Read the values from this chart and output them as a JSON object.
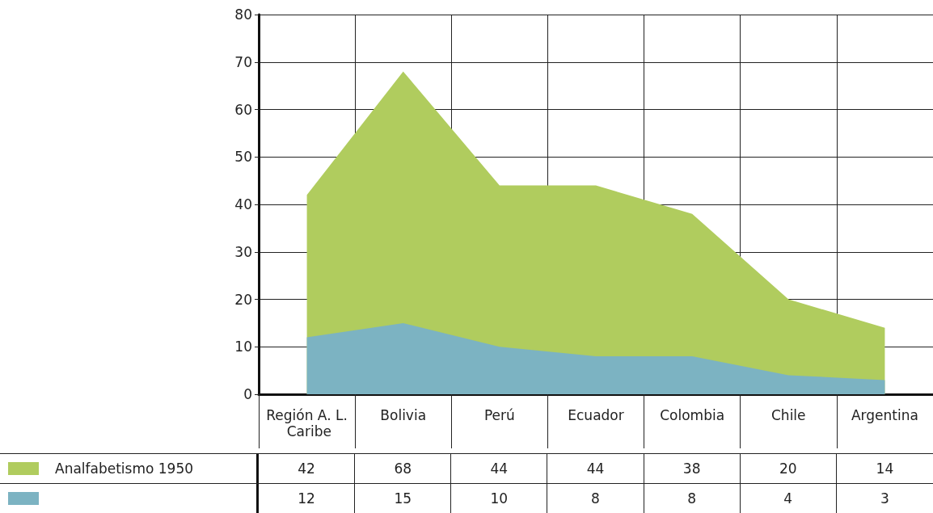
{
  "chart_data": {
    "type": "area",
    "categories": [
      "Región A. L. Caribe",
      "Bolivia",
      "Perú",
      "Ecuador",
      "Colombia",
      "Chile",
      "Argentina"
    ],
    "series": [
      {
        "name": "Analfabetismo 1950",
        "color": "#b0cc5e",
        "values": [
          42,
          68,
          44,
          44,
          38,
          20,
          14
        ]
      },
      {
        "color": "#7cb3c2",
        "values": [
          12,
          15,
          10,
          8,
          8,
          4,
          3
        ]
      }
    ],
    "ylim": [
      0,
      80
    ],
    "yticks": [
      0,
      10,
      20,
      30,
      40,
      50,
      60,
      70,
      80
    ],
    "grid": true,
    "legend": "bottom left",
    "data_labels": true
  }
}
